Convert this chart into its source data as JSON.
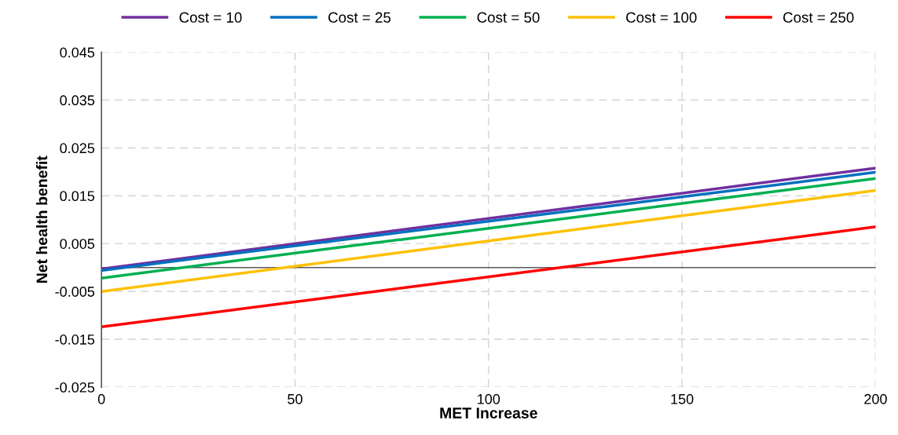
{
  "chart_data": {
    "type": "line",
    "xlabel": "MET Increase",
    "ylabel": "Net health benefit",
    "x": [
      0,
      200
    ],
    "series": [
      {
        "name": "Cost = 10",
        "color": "#7030a0",
        "values": [
          -0.0003,
          0.0208
        ]
      },
      {
        "name": "Cost = 25",
        "color": "#0070c0",
        "values": [
          -0.0006,
          0.0199
        ]
      },
      {
        "name": "Cost = 50",
        "color": "#00b050",
        "values": [
          -0.0022,
          0.0186
        ]
      },
      {
        "name": "Cost = 100",
        "color": "#ffc000",
        "values": [
          -0.005,
          0.0161
        ]
      },
      {
        "name": "Cost = 250",
        "color": "#ff0000",
        "values": [
          -0.0124,
          0.0085
        ]
      }
    ],
    "xlim": [
      0,
      200
    ],
    "xticks": [
      0,
      50,
      100,
      150,
      200
    ],
    "ylim": [
      -0.025,
      0.045
    ],
    "yticks": [
      -0.025,
      -0.015,
      -0.005,
      0.005,
      0.015,
      0.025,
      0.035,
      0.045
    ],
    "grid": true,
    "legend": "top",
    "marker": "none",
    "line_style": "solid"
  }
}
